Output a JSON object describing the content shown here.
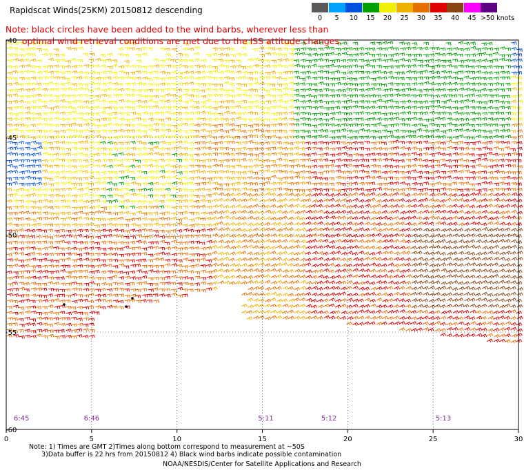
{
  "title": "Rapidscat Winds(25KM) 20150812 descending",
  "note_line1": "Note: black circles have been added to the wind barbs, wherever less than",
  "note_line2": "      optimal wind retrieval conditions are met due to the ISS attitude changes.",
  "colorbar": {
    "labels": [
      "0",
      "5",
      "10",
      "15",
      "20",
      "25",
      "30",
      "35",
      "40",
      "45",
      ">50 knots"
    ],
    "colors": [
      "#5a5a5a",
      "#00a0ff",
      "#0050e0",
      "#00a000",
      "#f0f000",
      "#f0b000",
      "#e87000",
      "#e00000",
      "#8b4513",
      "#ff00ff",
      "#5a0080"
    ]
  },
  "axes": {
    "x_ticks": [
      "0",
      "5",
      "10",
      "15",
      "20",
      "25",
      "30"
    ],
    "y_ticks": [
      "-40",
      "-45",
      "-50",
      "-55",
      "-60"
    ]
  },
  "time_labels": [
    "6:45",
    "6:46",
    "5:11",
    "5:12",
    "5:13"
  ],
  "footnote_line1": "Note: 1) Times are GMT 2)Times along bottom correspond to measurement at ~50S",
  "footnote_line2": "      3)Data buffer is 22 hrs from 20150812 4) Black wind barbs indicate possible contamination",
  "credit": "NOAA/NESDIS/Center for Satellite Applications and Research"
}
